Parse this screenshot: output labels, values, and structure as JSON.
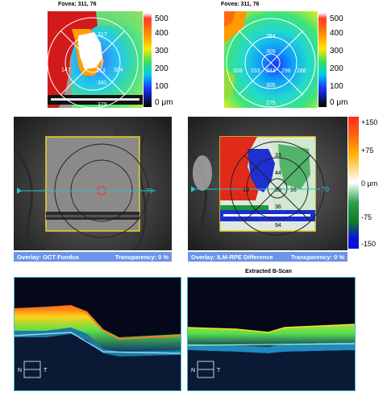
{
  "top_left": {
    "fovea_label": "Fovea: 311, 76",
    "sectors": {
      "top": "317",
      "left": "147",
      "center": "213",
      "right": "304",
      "inner": "341",
      "bottom": "379"
    }
  },
  "top_right": {
    "fovea_label": "Fovea: 311, 76",
    "sectors": {
      "top": "284",
      "inner_top": "309",
      "left": "328",
      "inner_left": "293",
      "center": "243",
      "inner_right": "298",
      "right": "288",
      "inner_bottom": "305",
      "bottom": "275"
    }
  },
  "thickness_scale": {
    "labels": [
      "500",
      "400",
      "300",
      "200",
      "100",
      "0"
    ],
    "unit": "μm",
    "colors": [
      "#ffffff",
      "#e8001a",
      "#ff8a00",
      "#ffe600",
      "#38e35a",
      "#00c8f0",
      "#1a35ff",
      "#000000"
    ]
  },
  "left_fundus": {
    "marker_value": "79",
    "overlay_label": "Overlay: OCT Fundus",
    "transparency_label": "Transparency: 0 %"
  },
  "right_fundus": {
    "marker_value": "70",
    "sectors": {
      "top": "33",
      "inner_top": "44",
      "center": "35",
      "inner_right": "16",
      "inner_bottom": "36",
      "bottom": "94",
      "left": "-18"
    },
    "overlay_label": "Overlay: ILM-RPE Difference",
    "transparency_label": "Transparency: 0 %"
  },
  "difference_scale": {
    "labels": [
      "+150",
      "+75",
      "0 μm",
      "-75",
      "-150"
    ],
    "colors": [
      "#ff2a1a",
      "#ff8c00",
      "#ffffff",
      "#1c8a2e",
      "#0a12d8"
    ]
  },
  "bscan_right_title": "Extracted B-Scan",
  "orientation": {
    "nasal": "N",
    "temporal": "T"
  }
}
